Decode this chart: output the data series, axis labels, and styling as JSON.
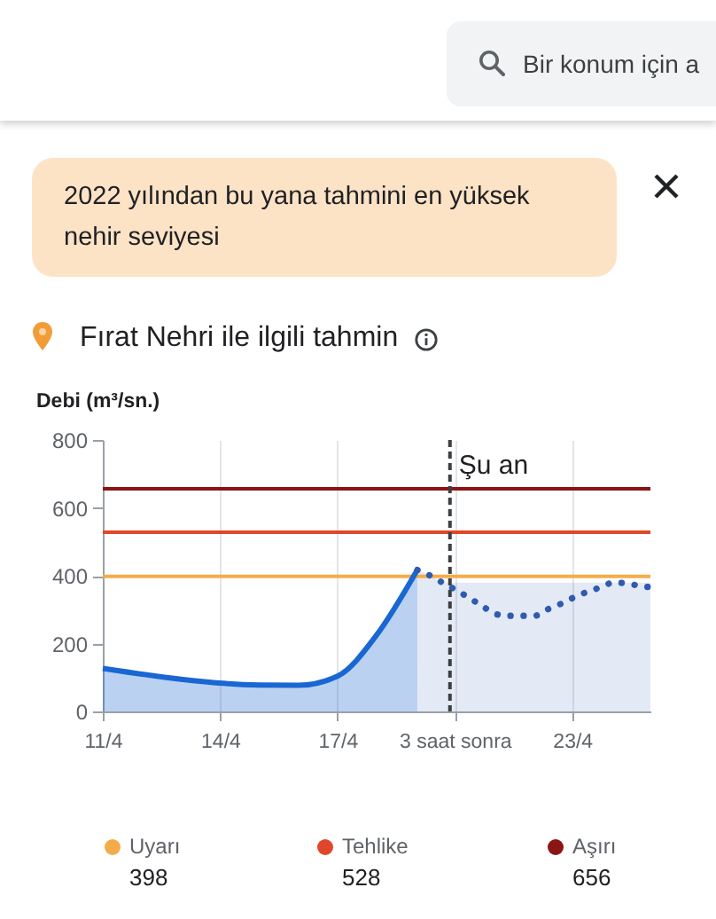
{
  "chart_data": {
    "type": "line",
    "title": "Fırat Nehri ile ilgili tahmin",
    "ylabel": "Debi (m³/sn.)",
    "annotations": [
      "2022 yılından bu yana tahmini en yüksek nehir seviyesi",
      "Bir konum için a",
      "398",
      "528",
      "656"
    ],
    "xlim": [
      "--04-11",
      "--04-25"
    ],
    "xticks": [
      {
        "value": "--04-11",
        "label": "11/4"
      },
      {
        "value": "--04-14",
        "label": "14/4"
      },
      {
        "value": "--04-17",
        "label": "17/4"
      },
      {
        "value": "--04-20",
        "label": "3 saat sonra"
      },
      {
        "value": "--04-23",
        "label": "23/4"
      }
    ],
    "ylim": [
      0,
      800
    ],
    "yticks": [
      0,
      200,
      400,
      600,
      800
    ],
    "grid": "x",
    "legend": "bottom",
    "series": [
      {
        "type": "area",
        "color": "#1967d2",
        "line_style": "solid",
        "x": [
          "--04-11",
          "--04-15",
          "--04-16",
          "--04-17",
          "--04-18",
          "--04-19T01:00"
        ],
        "values": [
          127,
          78,
          77,
          104,
          225,
          417
        ]
      },
      {
        "type": "line",
        "color": "#2f5bb0",
        "line_style": "dotted",
        "x": [
          "--04-19T01:00",
          "--04-19T09:00",
          "--04-19T17:00",
          "--04-20T01:00",
          "--04-20T09:00",
          "--04-20T17:00",
          "--04-21T01:00",
          "--04-21T09:00",
          "--04-21T17:00",
          "--04-22T01:00",
          "--04-22T09:00",
          "--04-22T17:00",
          "--04-23T01:00",
          "--04-23T09:00",
          "--04-23T17:00",
          "--04-24T01:00",
          "--04-24T09:00",
          "--04-24T17:00",
          "--04-25"
        ],
        "values": [
          417,
          400,
          378,
          357,
          334,
          310,
          287,
          282,
          282,
          282,
          301,
          317,
          336,
          352,
          365,
          379,
          378,
          370,
          366
        ],
        "lower": [
          0,
          0,
          0,
          0,
          0,
          0,
          0,
          0,
          0,
          0,
          0,
          0,
          0,
          0,
          0,
          0,
          0,
          0,
          0
        ],
        "upper": [
          417,
          400,
          382,
          380,
          380,
          380,
          380,
          380,
          380,
          380,
          380,
          380,
          380,
          380,
          380,
          380,
          380,
          380,
          380
        ]
      }
    ],
    "ref_lines": [
      {
        "axis": "y",
        "value": 398,
        "label": "Uyarı",
        "color": "#f4ac4a"
      },
      {
        "axis": "y",
        "value": 528,
        "label": "Tehlike",
        "color": "#e0472a"
      },
      {
        "axis": "y",
        "value": 656,
        "label": "Aşırı",
        "color": "#8b1515"
      },
      {
        "axis": "x",
        "value": "--04-19T21:00",
        "label": "Şu an",
        "color": "#3c4043",
        "line_style": "dashed"
      }
    ]
  }
}
